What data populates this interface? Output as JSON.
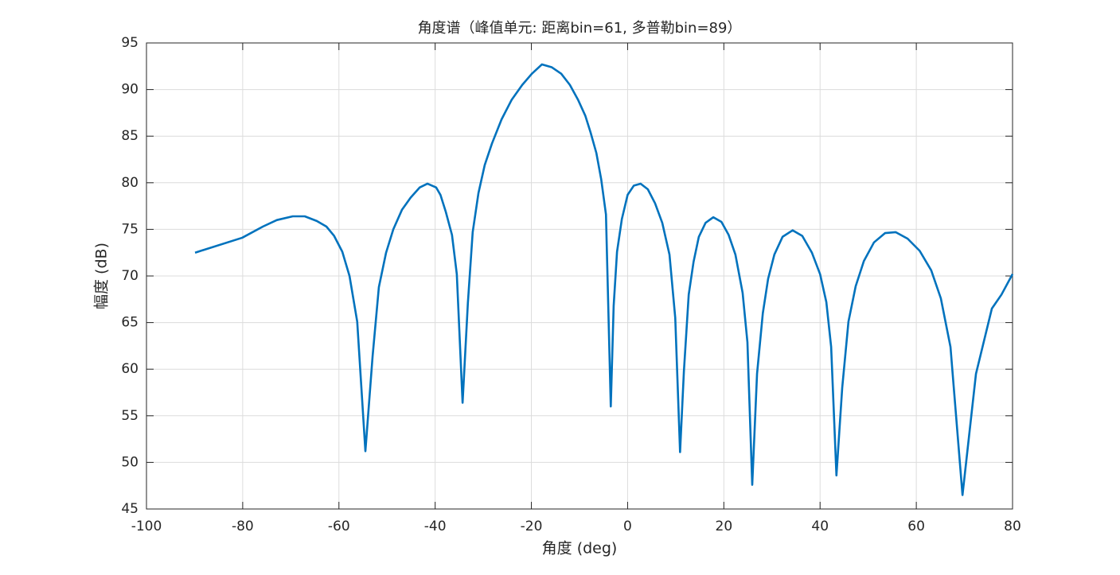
{
  "chart_data": {
    "type": "line",
    "title": "角度谱（峰值单元: 距离bin=61, 多普勒bin=89）",
    "xlabel": "角度 (deg)",
    "ylabel": "幅度 (dB)",
    "xlim": [
      -100,
      80
    ],
    "xticks": [
      -100,
      -80,
      -60,
      -40,
      -20,
      0,
      20,
      40,
      60,
      80
    ],
    "ylim": [
      45,
      95
    ],
    "yticks": [
      45,
      50,
      55,
      60,
      65,
      70,
      75,
      80,
      85,
      90,
      95
    ],
    "grid": true,
    "x": [
      -89.9,
      -80.1,
      -75.8,
      -72.9,
      -69.6,
      -67.1,
      -64.6,
      -62.6,
      -61.0,
      -59.3,
      -57.8,
      -56.2,
      -54.5,
      -53.0,
      -51.7,
      -50.2,
      -48.7,
      -46.9,
      -45.1,
      -43.2,
      -41.6,
      -39.8,
      -38.9,
      -37.8,
      -36.5,
      -35.5,
      -34.3,
      -33.2,
      -32.2,
      -31.0,
      -29.7,
      -28.2,
      -26.2,
      -24.1,
      -21.9,
      -19.9,
      -17.8,
      -15.8,
      -13.8,
      -12.0,
      -10.3,
      -8.8,
      -7.7,
      -6.5,
      -5.5,
      -4.5,
      -3.5,
      -2.9,
      -2.2,
      -1.2,
      0.0,
      1.3,
      2.7,
      4.2,
      5.7,
      7.2,
      8.7,
      9.9,
      10.9,
      11.7,
      12.7,
      13.7,
      14.8,
      16.2,
      17.8,
      19.5,
      21.0,
      22.4,
      23.9,
      24.9,
      25.9,
      26.9,
      28.1,
      29.2,
      30.5,
      32.2,
      34.3,
      36.3,
      38.3,
      40.0,
      41.3,
      42.3,
      43.4,
      44.6,
      45.9,
      47.4,
      49.1,
      51.2,
      53.5,
      55.7,
      58.2,
      60.7,
      63.1,
      65.1,
      67.1,
      69.6,
      72.4,
      75.7,
      77.7,
      80.0
    ],
    "series": [
      {
        "color": "#0072bd",
        "values": [
          72.5,
          74.1,
          75.3,
          76.0,
          76.4,
          76.4,
          75.9,
          75.3,
          74.3,
          72.6,
          70.0,
          65.1,
          51.2,
          61.4,
          68.8,
          72.5,
          75.0,
          77.1,
          78.4,
          79.5,
          79.9,
          79.5,
          78.7,
          76.9,
          74.4,
          70.2,
          56.4,
          67.1,
          74.7,
          78.9,
          81.9,
          84.2,
          86.8,
          88.9,
          90.5,
          91.7,
          92.7,
          92.4,
          91.7,
          90.5,
          88.9,
          87.2,
          85.4,
          83.2,
          80.4,
          76.6,
          56.0,
          66.8,
          72.6,
          76.1,
          78.7,
          79.7,
          79.9,
          79.3,
          77.8,
          75.7,
          72.3,
          65.5,
          51.1,
          59.8,
          68.0,
          71.5,
          74.2,
          75.7,
          76.3,
          75.8,
          74.4,
          72.3,
          68.2,
          62.9,
          47.6,
          59.5,
          66.0,
          69.7,
          72.3,
          74.2,
          74.9,
          74.3,
          72.5,
          70.2,
          67.2,
          62.4,
          48.6,
          58.0,
          65.1,
          68.9,
          71.6,
          73.6,
          74.6,
          74.7,
          74.0,
          72.7,
          70.6,
          67.6,
          62.4,
          46.5,
          59.5,
          66.5,
          68.0,
          70.2
        ]
      }
    ]
  }
}
